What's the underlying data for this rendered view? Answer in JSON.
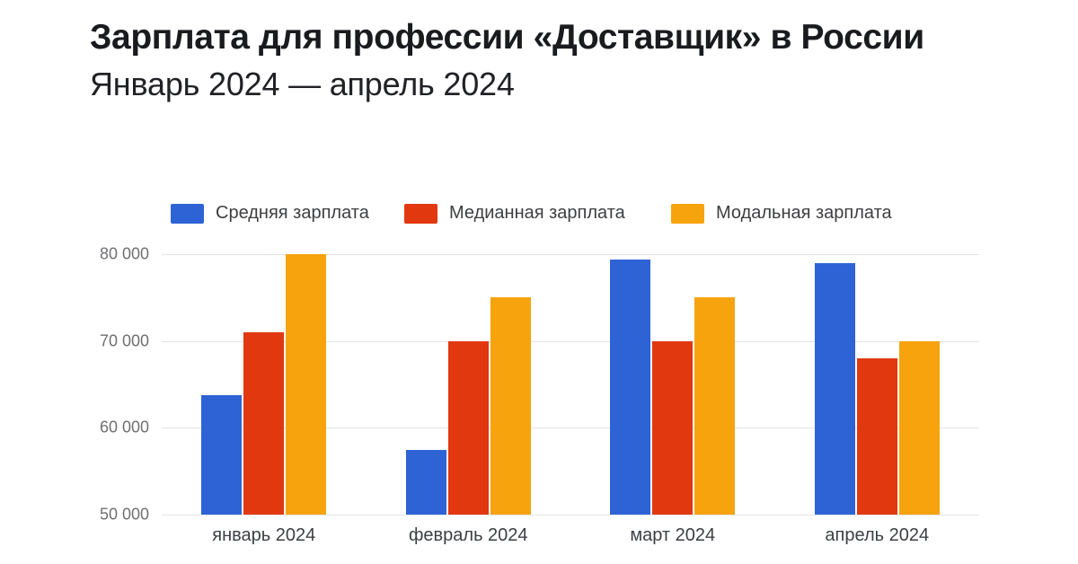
{
  "header": {
    "title": "Зарплата для профессии «Доставщик» в России",
    "subtitle": "Январь 2024 — апрель 2024"
  },
  "chart_data": {
    "type": "bar",
    "title": "Зарплата для профессии «Доставщик» в России",
    "subtitle": "Январь 2024 — апрель 2024",
    "categories": [
      "январь 2024",
      "февраль 2024",
      "март 2024",
      "апрель 2024"
    ],
    "series": [
      {
        "name": "Средняя зарплата",
        "color": "#2E63D6",
        "values": [
          63800,
          57500,
          79400,
          79000
        ]
      },
      {
        "name": "Медианная зарплата",
        "color": "#E1380F",
        "values": [
          71000,
          70000,
          70000,
          68000
        ]
      },
      {
        "name": "Модальная зарплата",
        "color": "#F7A30E",
        "values": [
          80000,
          75000,
          75000,
          70000
        ]
      }
    ],
    "ylim": [
      50000,
      80000
    ],
    "yticks": [
      50000,
      60000,
      70000,
      80000
    ],
    "ytick_labels": [
      "50 000",
      "60 000",
      "70 000",
      "80 000"
    ],
    "grid": true,
    "legend_position": "top",
    "gridline_color": "#e4e4e4",
    "background_color": "#ffffff"
  }
}
